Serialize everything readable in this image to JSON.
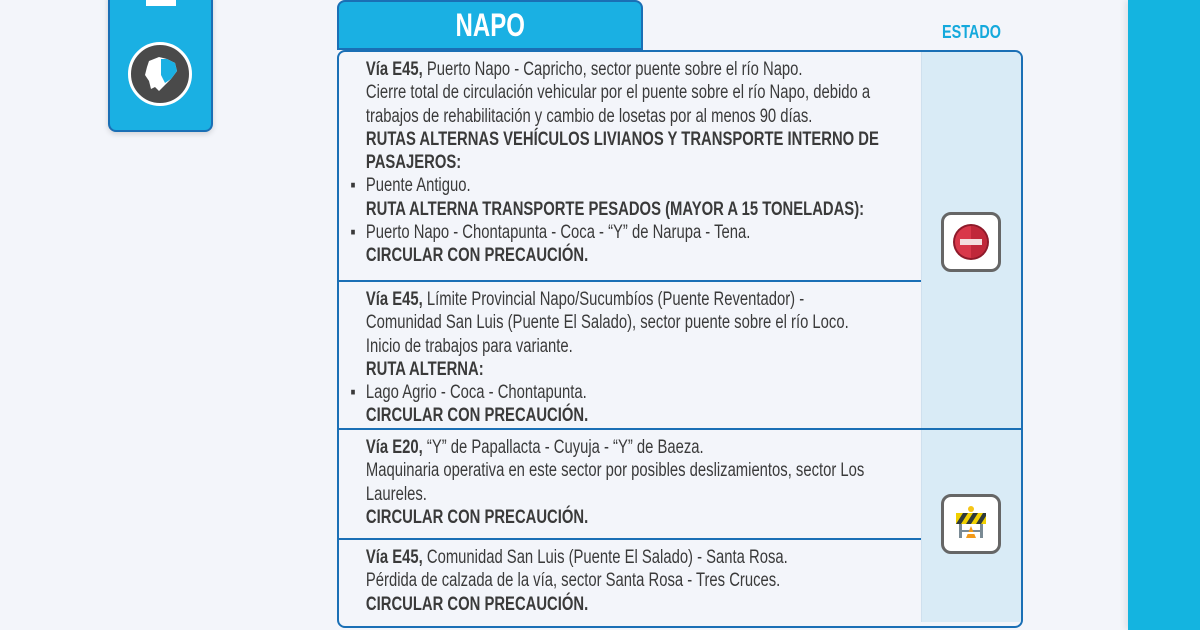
{
  "header": {
    "province": "NAPO",
    "status_column": "ESTADO"
  },
  "colors": {
    "accent": "#1ab0e3",
    "border": "#1a6fb5",
    "status_bg": "#d9ebf6",
    "strip": "#14b4e0"
  },
  "side_card": {
    "icon": "ecuador-map-icon"
  },
  "groups": [
    {
      "status_icon": "no-entry-icon",
      "status": "cerrada",
      "rows": [
        {
          "lines": [
            {
              "lead": "Vía E45,",
              "text": " Puerto Napo - Capricho, sector puente sobre el río Napo."
            },
            {
              "text": "Cierre total de circulación vehicular por el puente sobre el río Napo, debido a"
            },
            {
              "text": "trabajos de rehabilitación y cambio de losetas por al menos 90 días."
            },
            {
              "text": "RUTAS ALTERNAS VEHÍCULOS LIVIANOS Y TRANSPORTE INTERNO DE",
              "bold": true
            },
            {
              "text": "PASAJEROS:",
              "bold": true
            },
            {
              "text": "Puente Antiguo.",
              "bullet": true
            },
            {
              "text": "RUTA ALTERNA TRANSPORTE PESADOS (MAYOR A 15 TONELADAS):",
              "bold": true
            },
            {
              "text": "Puerto Napo - Chontapunta - Coca - “Y” de Narupa - Tena.",
              "bullet": true
            },
            {
              "text": "CIRCULAR CON PRECAUCIÓN.",
              "bold": true
            }
          ]
        },
        {
          "lines": [
            {
              "lead": "Vía E45,",
              "text": " Límite Provincial Napo/Sucumbíos (Puente Reventador) -"
            },
            {
              "text": "Comunidad San Luis (Puente El Salado), sector puente sobre el río Loco."
            },
            {
              "text": "Inicio de trabajos para variante."
            },
            {
              "text": "RUTA ALTERNA:",
              "bold": true
            },
            {
              "text": "Lago Agrio - Coca - Chontapunta.",
              "bullet": true
            },
            {
              "text": "CIRCULAR CON PRECAUCIÓN.",
              "bold": true
            }
          ]
        }
      ]
    },
    {
      "status_icon": "road-works-barrier-icon",
      "status": "trabajos",
      "rows": [
        {
          "lines": [
            {
              "lead": "Vía E20,",
              "text": " “Y” de Papallacta - Cuyuja - “Y” de Baeza."
            },
            {
              "text": "Maquinaria operativa en este sector por posibles deslizamientos, sector Los"
            },
            {
              "text": "Laureles."
            },
            {
              "text": "CIRCULAR CON PRECAUCIÓN.",
              "bold": true
            }
          ]
        },
        {
          "lines": [
            {
              "lead": "Vía E45,",
              "text": " Comunidad San Luis (Puente El Salado) - Santa Rosa."
            },
            {
              "text": "Pérdida de calzada de la vía, sector Santa Rosa - Tres Cruces."
            },
            {
              "text": "CIRCULAR CON PRECAUCIÓN.",
              "bold": true
            }
          ]
        }
      ]
    }
  ]
}
